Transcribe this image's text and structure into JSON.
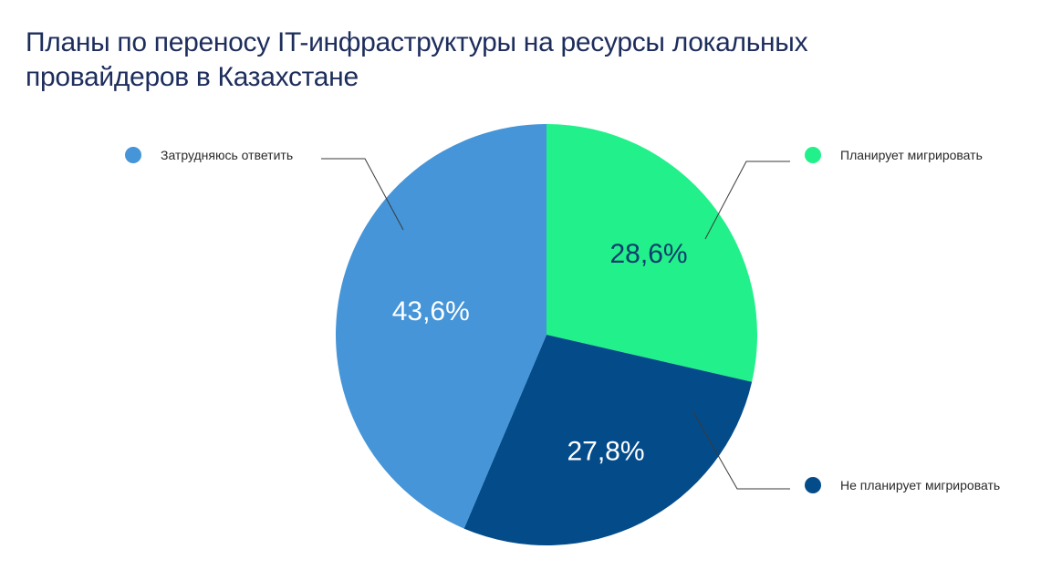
{
  "chart_data": {
    "type": "pie",
    "title": "Планы по переносу IT-инфраструктуры на ресурсы локальных провайдеров в Казахстане",
    "legend_placement": "outside-labels",
    "slices": [
      {
        "name": "Планирует мигрировать",
        "value": 28.6,
        "label": "28,6%",
        "color": "#22f08a",
        "label_color": "#0c3d6e"
      },
      {
        "name": "Не планирует мигрировать",
        "value": 27.8,
        "label": "27,8%",
        "color": "#044b8a",
        "label_color": "#ffffff"
      },
      {
        "name": "Затрудняюсь ответить",
        "value": 43.6,
        "label": "43,6%",
        "color": "#4595d8",
        "label_color": "#ffffff"
      }
    ]
  }
}
